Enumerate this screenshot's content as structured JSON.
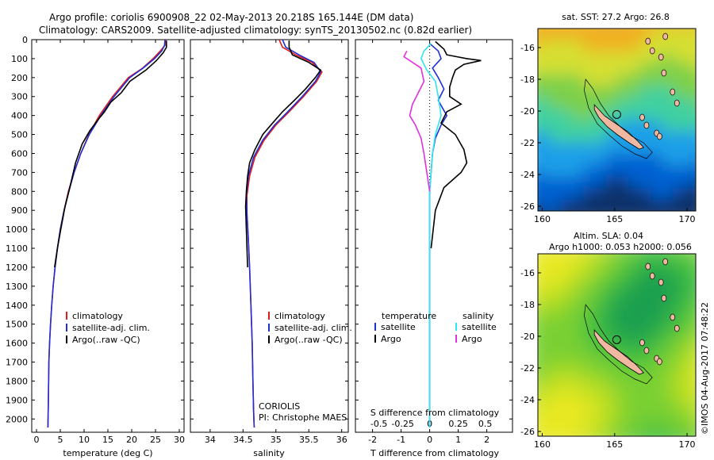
{
  "header": {
    "line1": "Argo profile: coriolis 6900908_22 02-May-2013 20.218S 165.144E (DM data)",
    "line2": "Climatology: CARS2009. Satellite-adjusted climatology: synTS_20130502.nc (0.82d earlier)"
  },
  "depth_ticks": [
    0,
    100,
    200,
    300,
    400,
    500,
    600,
    700,
    800,
    900,
    1000,
    1100,
    1200,
    1300,
    1400,
    1500,
    1600,
    1700,
    1800,
    1900,
    2000
  ],
  "colors": {
    "climatology": "#e41a1c",
    "satellite": "#1f2fd6",
    "argo": "#000000",
    "sat_s": "#2ee6f0",
    "argo_s": "#e030e0",
    "land": "#f0b8a0"
  },
  "chart_data": [
    {
      "type": "line",
      "name": "temperature-profile",
      "xlabel": "temperature (deg C)",
      "xlim": [
        -1,
        31
      ],
      "ylim": [
        2070,
        0
      ],
      "xticks": [
        0,
        5,
        10,
        15,
        20,
        25,
        30
      ],
      "legend": {
        "placement": "lower-left",
        "entries": [
          "climatology",
          "satellite-adj. clim.",
          "Argo(..raw -QC)"
        ]
      },
      "series": [
        {
          "name": "climatology",
          "color": "#e41a1c",
          "x": [
            27.1,
            27.0,
            26.0,
            24.5,
            22.3,
            19.3,
            16.0,
            13.2,
            11.0,
            9.3,
            7.9,
            6.7,
            5.8,
            5.0,
            4.4,
            3.9,
            3.5,
            3.2,
            2.95,
            2.75,
            2.6,
            2.5,
            2.4
          ],
          "y": [
            0,
            30,
            60,
            100,
            150,
            200,
            300,
            400,
            500,
            600,
            700,
            800,
            900,
            1000,
            1100,
            1200,
            1300,
            1400,
            1500,
            1600,
            1700,
            1900,
            2045
          ]
        },
        {
          "name": "satellite-adj. clim.",
          "color": "#1f2fd6",
          "x": [
            27.0,
            26.9,
            26.3,
            24.8,
            22.4,
            19.6,
            16.3,
            13.5,
            11.1,
            9.3,
            7.9,
            6.8,
            5.8,
            5.0,
            4.4,
            3.9,
            3.5,
            3.2,
            2.95,
            2.75,
            2.6,
            2.5,
            2.4
          ],
          "y": [
            0,
            30,
            60,
            100,
            150,
            200,
            300,
            400,
            500,
            600,
            700,
            800,
            900,
            1000,
            1100,
            1200,
            1300,
            1400,
            1500,
            1600,
            1700,
            1900,
            2045
          ]
        },
        {
          "name": "Argo(..raw -QC)",
          "color": "#000000",
          "x": [
            27.3,
            27.3,
            26.6,
            25.2,
            23.0,
            19.6,
            17.8,
            15.6,
            14.3,
            13.0,
            11.2,
            9.6,
            8.2,
            7.0,
            6.0,
            5.1,
            4.4,
            3.8
          ],
          "y": [
            5,
            40,
            70,
            110,
            160,
            220,
            280,
            330,
            380,
            420,
            480,
            550,
            650,
            780,
            880,
            1000,
            1100,
            1200
          ]
        }
      ]
    },
    {
      "type": "line",
      "name": "salinity-profile",
      "xlabel": "salinity",
      "xlim": [
        33.7,
        36.1
      ],
      "ylim": [
        2070,
        0
      ],
      "xticks": [
        34,
        34.5,
        35,
        35.5,
        36
      ],
      "legend": {
        "placement": "lower-right",
        "entries": [
          "climatology",
          "satellite-adj. clim.",
          "Argo(..raw -QC)"
        ]
      },
      "annotation": [
        "CORIOLIS",
        "PI: Christophe MAES"
      ],
      "series": [
        {
          "name": "climatology",
          "color": "#e41a1c",
          "x": [
            35.05,
            35.1,
            35.3,
            35.55,
            35.7,
            35.62,
            35.42,
            35.2,
            35.0,
            34.82,
            34.68,
            34.6,
            34.56,
            34.56,
            34.58,
            34.6,
            34.62,
            34.64,
            34.65,
            34.66,
            34.67
          ],
          "y": [
            0,
            40,
            80,
            120,
            170,
            220,
            300,
            380,
            450,
            530,
            620,
            720,
            820,
            920,
            1050,
            1200,
            1400,
            1600,
            1800,
            1950,
            2045
          ]
        },
        {
          "name": "satellite-adj. clim.",
          "color": "#1f2fd6",
          "x": [
            35.1,
            35.15,
            35.35,
            35.58,
            35.68,
            35.6,
            35.4,
            35.18,
            34.98,
            34.8,
            34.66,
            34.58,
            34.55,
            34.56,
            34.58,
            34.6,
            34.62,
            34.64,
            34.65,
            34.66,
            34.67
          ],
          "y": [
            0,
            40,
            80,
            120,
            170,
            220,
            300,
            380,
            450,
            530,
            620,
            720,
            820,
            920,
            1050,
            1200,
            1400,
            1600,
            1800,
            1950,
            2045
          ]
        },
        {
          "name": "Argo(..raw -QC)",
          "color": "#000000",
          "x": [
            35.2,
            35.2,
            35.25,
            35.5,
            35.68,
            35.6,
            35.45,
            35.28,
            35.1,
            34.95,
            34.8,
            34.68,
            34.6,
            34.57,
            34.55,
            34.54,
            34.55,
            34.57
          ],
          "y": [
            5,
            40,
            80,
            120,
            160,
            200,
            260,
            320,
            380,
            440,
            500,
            580,
            650,
            720,
            800,
            880,
            1000,
            1200
          ]
        }
      ]
    },
    {
      "type": "line",
      "name": "difference-profile",
      "xlabel": "T difference from climatology",
      "xlabel_top": "S difference from climatology",
      "xlim": [
        -2.6,
        2.9
      ],
      "ylim": [
        2070,
        0
      ],
      "xticks": [
        -2,
        -1,
        0,
        1,
        2
      ],
      "s_xticks": [
        "-0.5",
        "-0.25",
        "0",
        "0.25",
        "0.5"
      ],
      "s_xtick_values": [
        -2,
        -1,
        0,
        1,
        2
      ],
      "legend": {
        "placement": "lower-center",
        "group_left": "temperature",
        "group_right": "salinity",
        "left_entries": [
          "satellite",
          "Argo"
        ],
        "right_entries": [
          "satellite",
          "Argo"
        ]
      },
      "series": [
        {
          "name": "satellite",
          "group": "temperature",
          "color": "#1f2fd6",
          "x": [
            0.0,
            0.3,
            0.4,
            0.1,
            0.3,
            0.5,
            0.3,
            0.6,
            0.4,
            0.2,
            0.1,
            0.05,
            0.0,
            0.0,
            0.0,
            0.0,
            0.0
          ],
          "y": [
            20,
            60,
            100,
            150,
            200,
            260,
            320,
            400,
            450,
            520,
            600,
            700,
            800,
            1000,
            1200,
            1500,
            2045
          ]
        },
        {
          "name": "Argo",
          "group": "temperature",
          "color": "#000000",
          "x": [
            0.2,
            0.5,
            0.6,
            1.3,
            1.8,
            1.2,
            0.9,
            0.8,
            0.7,
            0.7,
            1.1,
            0.6,
            0.4,
            0.9,
            1.2,
            1.3,
            1.1,
            0.5,
            0.2,
            0.05
          ],
          "y": [
            10,
            50,
            80,
            100,
            110,
            130,
            160,
            200,
            250,
            300,
            340,
            380,
            440,
            500,
            580,
            650,
            700,
            780,
            900,
            1100
          ]
        },
        {
          "name": "satellite",
          "group": "salinity",
          "color": "#2ee6f0",
          "x": [
            0.05,
            -0.2,
            -0.3,
            -0.1,
            0.2,
            0.3,
            0.4,
            0.2,
            0.1,
            0.0,
            0.0,
            0.0,
            0.0
          ],
          "y": [
            20,
            60,
            100,
            160,
            220,
            300,
            400,
            500,
            600,
            800,
            1000,
            1500,
            2045
          ]
        },
        {
          "name": "Argo",
          "group": "salinity",
          "color": "#e030e0",
          "x": [
            -0.8,
            -0.9,
            -0.3,
            -0.2,
            -0.4,
            -0.6,
            -0.7,
            -0.5,
            -0.3,
            -0.2,
            -0.1,
            0.0
          ],
          "y": [
            60,
            90,
            150,
            220,
            280,
            340,
            400,
            450,
            520,
            600,
            700,
            800
          ]
        }
      ]
    },
    {
      "type": "heatmap",
      "name": "sst-map",
      "title": "sat. SST: 27.2 Argo: 26.8",
      "xlim": [
        159.7,
        170.6
      ],
      "ylim": [
        -26.3,
        -14.8
      ],
      "xticks": [
        160,
        165,
        170
      ],
      "yticks": [
        -16,
        -18,
        -20,
        -22,
        -24,
        -26
      ],
      "float_position": [
        165.144,
        -20.218
      ],
      "palette": [
        "#08306b",
        "#0060d0",
        "#1a9fe8",
        "#3fd0a0",
        "#7ed04a",
        "#d6df30",
        "#f0b020"
      ]
    },
    {
      "type": "heatmap",
      "name": "sla-map",
      "title_lines": [
        "Altim. SLA: 0.04",
        "Argo h1000: 0.053 h2000: 0.056"
      ],
      "xlim": [
        159.7,
        170.6
      ],
      "ylim": [
        -26.3,
        -14.8
      ],
      "xticks": [
        160,
        165,
        170
      ],
      "yticks": [
        -16,
        -18,
        -20,
        -22,
        -24,
        -26
      ],
      "float_position": [
        165.144,
        -20.218
      ],
      "palette": [
        "#1aa050",
        "#40c040",
        "#7ad030",
        "#c0e020",
        "#e8e820"
      ]
    }
  ],
  "footer": {
    "stamp": "©IMOS 04-Aug-2017 07:48:22"
  }
}
